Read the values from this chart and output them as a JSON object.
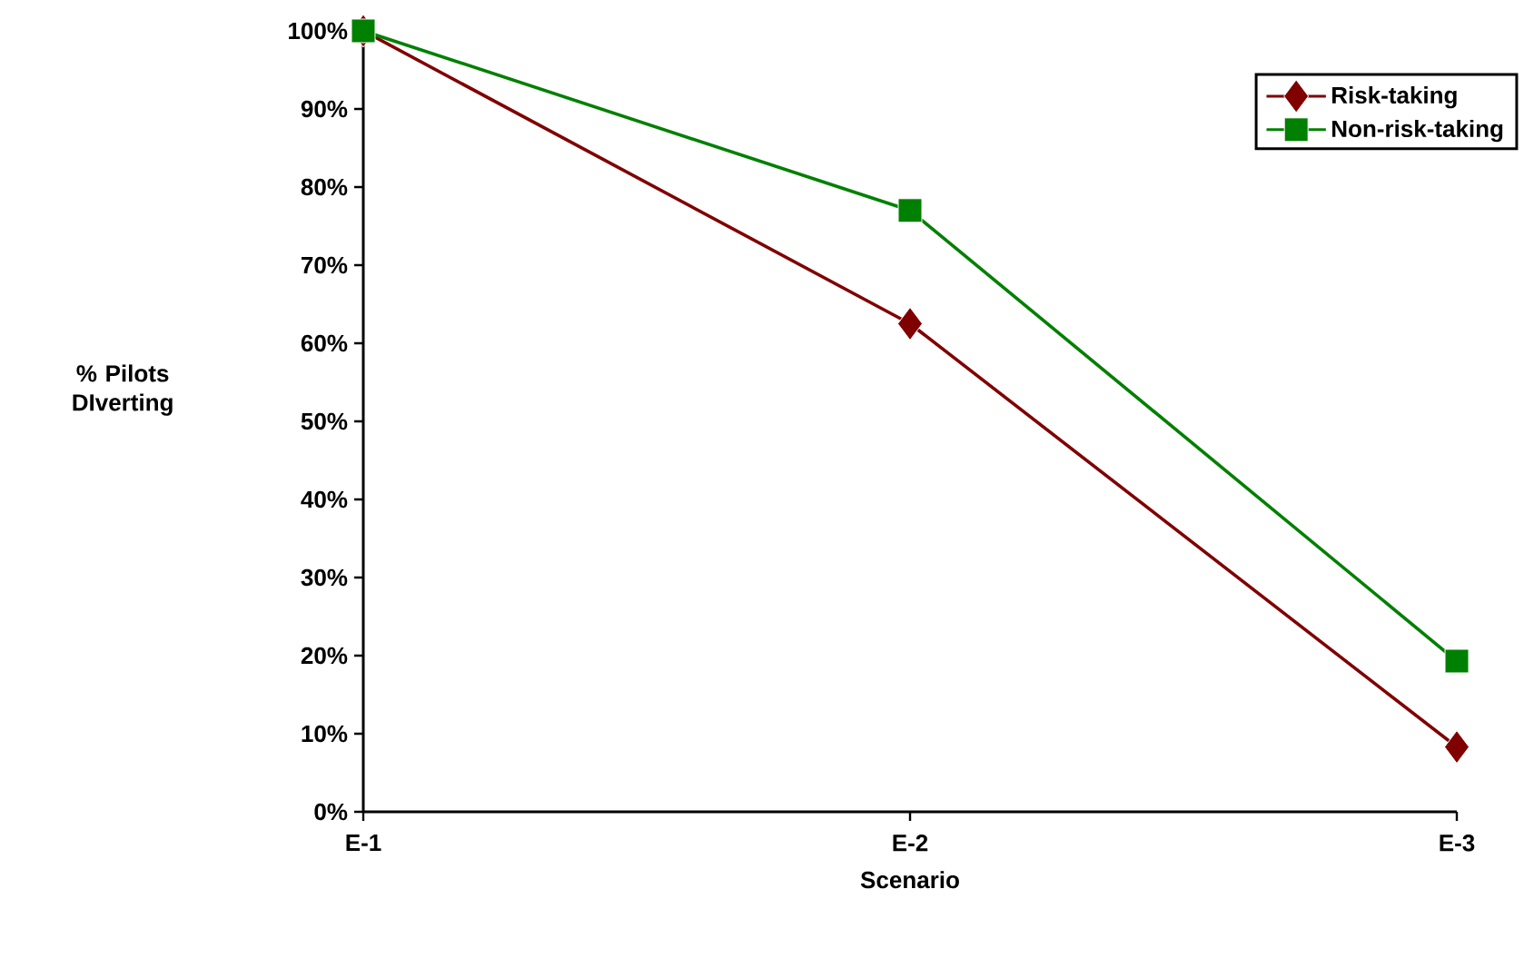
{
  "chart_data": {
    "type": "line",
    "xlabel": "Scenario",
    "ylabel": "% Pilots DIverting",
    "categories": [
      "E-1",
      "E-2",
      "E-3"
    ],
    "series": [
      {
        "name": "Risk-taking",
        "color": "#800000",
        "marker": "diamond",
        "values": [
          100,
          62.5,
          8.3
        ]
      },
      {
        "name": "Non-risk-taking",
        "color": "#008000",
        "marker": "square",
        "values": [
          100,
          77,
          19.3
        ]
      }
    ],
    "ylim": [
      0,
      100
    ],
    "yticks": [
      {
        "value": 0,
        "label": "0%"
      },
      {
        "value": 10,
        "label": "10%"
      },
      {
        "value": 20,
        "label": "20%"
      },
      {
        "value": 30,
        "label": "30%"
      },
      {
        "value": 40,
        "label": "40%"
      },
      {
        "value": 50,
        "label": "50%"
      },
      {
        "value": 60,
        "label": "60%"
      },
      {
        "value": 70,
        "label": "70%"
      },
      {
        "value": 80,
        "label": "80%"
      },
      {
        "value": 90,
        "label": "90%"
      },
      {
        "value": 100,
        "label": "100%"
      }
    ],
    "grid": false,
    "legend": "top right",
    "line_style": "solid"
  }
}
